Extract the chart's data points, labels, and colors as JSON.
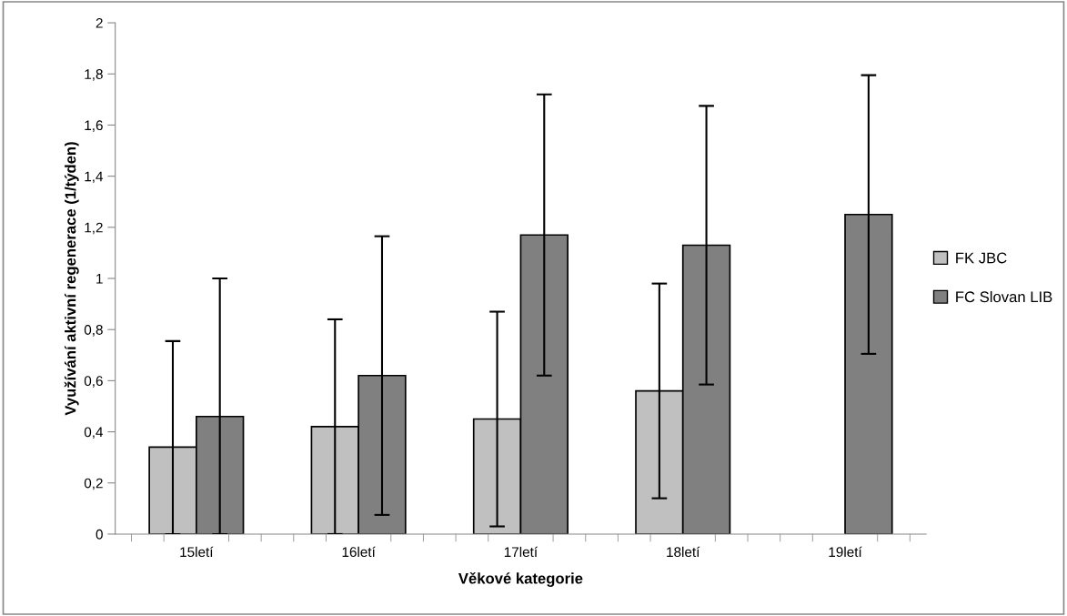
{
  "chart_data": {
    "type": "bar",
    "xlabel": "Věkové kategorie",
    "ylabel": "Využívání aktivní regenerace (1/týden)",
    "categories": [
      "15letí",
      "16letí",
      "17letí",
      "18letí",
      "19letí"
    ],
    "series": [
      {
        "name": "FK JBC",
        "color": "#c0c0c0",
        "values": [
          0.34,
          0.42,
          0.45,
          0.56,
          null
        ],
        "errors": [
          [
            0,
            0.755
          ],
          [
            0,
            0.84
          ],
          0.42,
          0.42,
          null
        ]
      },
      {
        "name": "FC Slovan LIB",
        "color": "#808080",
        "values": [
          0.46,
          0.62,
          1.17,
          1.13,
          1.25
        ],
        "errors": [
          [
            0,
            1.0
          ],
          0.545,
          0.55,
          0.545,
          0.545
        ]
      }
    ],
    "ylim": [
      0,
      2
    ],
    "yticks": [
      0,
      {
        "value": 0.2,
        "label": "0,2"
      },
      {
        "value": 0.4,
        "label": "0,4"
      },
      {
        "value": 0.6,
        "label": "0,6"
      },
      {
        "value": 0.8,
        "label": "0,8"
      },
      1,
      {
        "value": 1.2,
        "label": "1,2"
      },
      {
        "value": 1.4,
        "label": "1,4"
      },
      {
        "value": 1.6,
        "label": "1,6"
      },
      {
        "value": 1.8,
        "label": "1,8"
      },
      2
    ],
    "grid": false,
    "legend": "right"
  }
}
